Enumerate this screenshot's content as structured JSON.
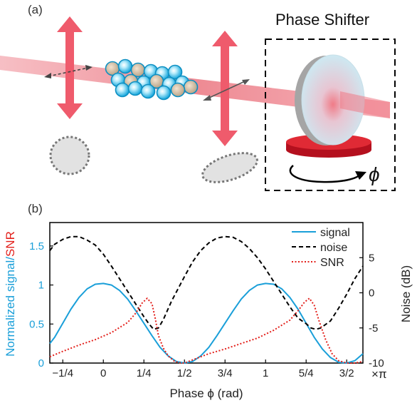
{
  "panel_a": {
    "label": "(a)",
    "phase_shifter_title": "Phase Shifter",
    "phi_symbol": "ϕ"
  },
  "panel_b": {
    "label": "(b)",
    "left_axis_label_part1": "Normalized signal/",
    "left_axis_label_part2": "SNR",
    "right_axis_label": "Noise (dB)",
    "x_axis_label": "Phase ϕ (rad)",
    "x_unit_suffix": "×π",
    "colors": {
      "signal": "#1a9fd9",
      "noise": "#000000",
      "snr": "#e3201b"
    }
  },
  "chart_data": {
    "type": "line",
    "xlabel": "Phase ϕ (rad)",
    "ylabel_left": "Normalized signal/SNR",
    "ylabel_right": "Noise (dB)",
    "xlim": [
      -0.33,
      1.6
    ],
    "ylim_left": [
      0,
      1.8
    ],
    "ylim_right": [
      -10,
      10
    ],
    "x_ticks": [
      -0.25,
      0,
      0.25,
      0.5,
      0.75,
      1,
      1.25,
      1.5
    ],
    "x_tick_labels": [
      "−1/4",
      "0",
      "1/4",
      "1/2",
      "3/4",
      "1",
      "5/4",
      "3/2"
    ],
    "y_left_ticks": [
      0,
      0.5,
      1,
      1.5
    ],
    "y_left_tick_labels": [
      "0",
      "0.5",
      "1",
      "1.5"
    ],
    "y_right_ticks": [
      -10,
      -5,
      0,
      5
    ],
    "y_right_tick_labels": [
      "-10",
      "-5",
      "0",
      "5"
    ],
    "legend_position": "top-right",
    "series": [
      {
        "name": "signal",
        "axis": "left",
        "style": "solid",
        "x": [
          -0.33,
          -0.3,
          -0.25,
          -0.2,
          -0.15,
          -0.1,
          -0.05,
          0,
          0.05,
          0.1,
          0.15,
          0.2,
          0.25,
          0.3,
          0.35,
          0.4,
          0.45,
          0.5,
          0.55,
          0.6,
          0.65,
          0.7,
          0.75,
          0.8,
          0.85,
          0.9,
          0.95,
          1,
          1.05,
          1.1,
          1.15,
          1.2,
          1.25,
          1.3,
          1.35,
          1.4,
          1.45,
          1.5,
          1.55,
          1.6
        ],
        "y": [
          0.25,
          0.33,
          0.51,
          0.69,
          0.84,
          0.95,
          1.01,
          1.02,
          1.0,
          0.93,
          0.82,
          0.67,
          0.51,
          0.35,
          0.2,
          0.09,
          0.02,
          0.0,
          0.02,
          0.09,
          0.2,
          0.35,
          0.51,
          0.67,
          0.82,
          0.93,
          1.0,
          1.02,
          1.01,
          0.95,
          0.84,
          0.69,
          0.51,
          0.33,
          0.18,
          0.07,
          0.01,
          0.0,
          0.03,
          0.12
        ]
      },
      {
        "name": "noise",
        "axis": "right",
        "style": "dashed",
        "x": [
          -0.33,
          -0.3,
          -0.25,
          -0.2,
          -0.15,
          -0.1,
          -0.05,
          0,
          0.05,
          0.1,
          0.15,
          0.2,
          0.25,
          0.28,
          0.31,
          0.34,
          0.37,
          0.42,
          0.5,
          0.55,
          0.6,
          0.65,
          0.7,
          0.75,
          0.8,
          0.85,
          0.9,
          0.95,
          1,
          1.05,
          1.1,
          1.15,
          1.2,
          1.25,
          1.28,
          1.31,
          1.34,
          1.4,
          1.45,
          1.5,
          1.55,
          1.6
        ],
        "y": [
          6.0,
          6.9,
          7.6,
          8.0,
          8.0,
          7.5,
          6.8,
          5.5,
          3.8,
          2.0,
          0.2,
          -1.6,
          -3.4,
          -4.4,
          -5.2,
          -5.0,
          -3.8,
          -1.2,
          2.3,
          4.4,
          6.0,
          7.1,
          7.8,
          8.0,
          7.9,
          7.3,
          6.3,
          5.0,
          3.4,
          1.6,
          -0.2,
          -2.0,
          -3.6,
          -4.4,
          -5.0,
          -5.2,
          -5.0,
          -4.0,
          -2.2,
          -0.2,
          2.0,
          3.8
        ]
      },
      {
        "name": "SNR",
        "axis": "left",
        "style": "dotted",
        "x": [
          -0.33,
          -0.25,
          -0.15,
          -0.05,
          0.05,
          0.15,
          0.2,
          0.24,
          0.27,
          0.3,
          0.32,
          0.34,
          0.37,
          0.4,
          0.44,
          0.48,
          0.5,
          0.55,
          0.65,
          0.75,
          0.85,
          0.95,
          1.05,
          1.15,
          1.2,
          1.24,
          1.27,
          1.3,
          1.33,
          1.37,
          1.41,
          1.45,
          1.5,
          1.55,
          1.6
        ],
        "y": [
          0.08,
          0.15,
          0.23,
          0.3,
          0.39,
          0.52,
          0.64,
          0.77,
          0.83,
          0.76,
          0.57,
          0.35,
          0.19,
          0.09,
          0.02,
          0.0,
          0.0,
          0.04,
          0.12,
          0.18,
          0.25,
          0.32,
          0.42,
          0.55,
          0.67,
          0.78,
          0.83,
          0.74,
          0.54,
          0.3,
          0.12,
          0.03,
          0.0,
          0.0,
          0.02
        ]
      }
    ]
  }
}
